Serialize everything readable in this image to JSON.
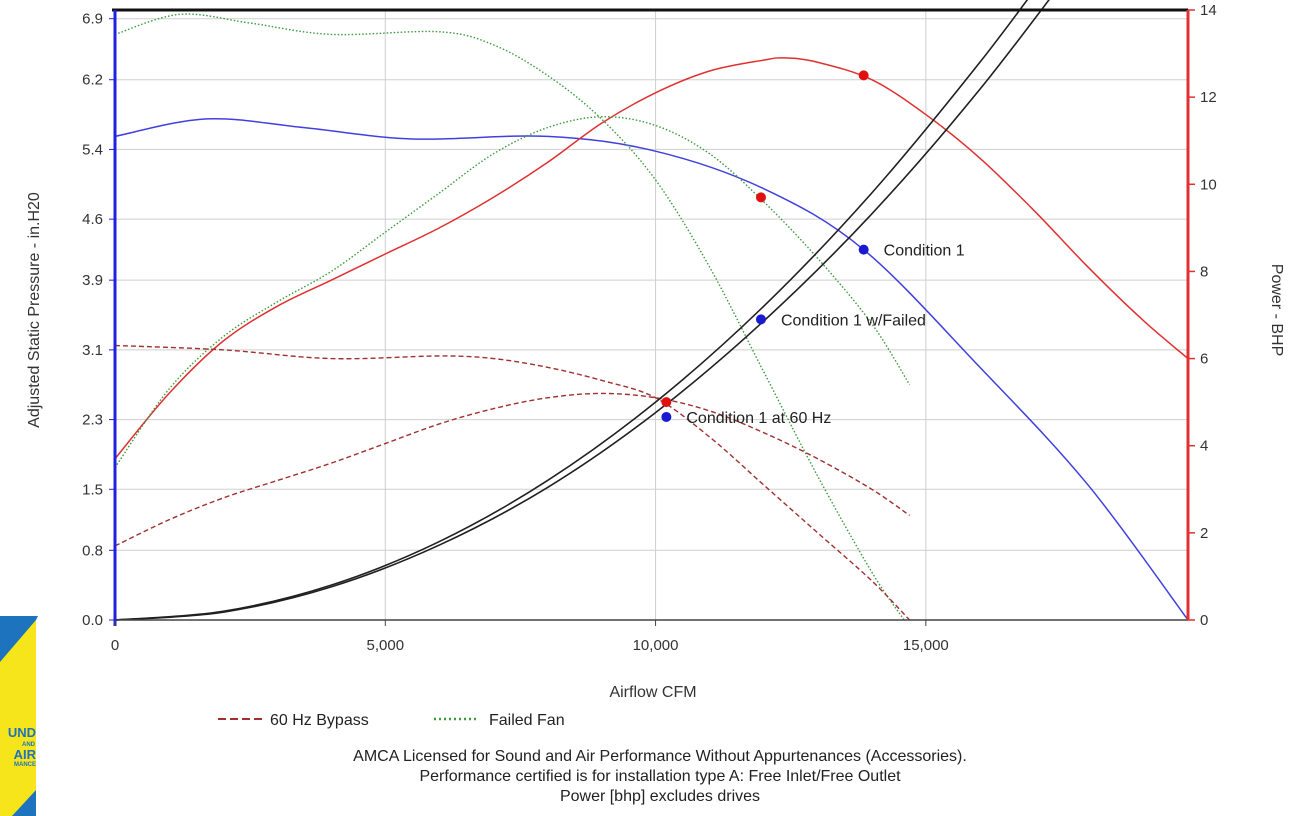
{
  "chart_data": {
    "type": "line",
    "xlabel": "Airflow CFM",
    "ylabel_left": "Adjusted Static Pressure - in.H20",
    "ylabel_right": "Power - BHP",
    "xlim": [
      0,
      19850
    ],
    "ylim_left": [
      0,
      7.0
    ],
    "ylim_right": [
      0,
      14
    ],
    "x_ticks": [
      0,
      5000,
      10000,
      15000
    ],
    "x_tick_labels": [
      "0",
      "5,000",
      "10,000",
      "15,000"
    ],
    "y_left_ticks": [
      0.0,
      0.8,
      1.5,
      2.3,
      3.1,
      3.9,
      4.6,
      5.4,
      6.2,
      6.9
    ],
    "y_left_tick_labels": [
      "0.0",
      "0.8",
      "1.5",
      "2.3",
      "3.1",
      "3.9",
      "4.6",
      "5.4",
      "6.2",
      "6.9"
    ],
    "y_right_ticks": [
      0,
      2,
      4,
      6,
      8,
      10,
      12,
      14
    ],
    "y_right_tick_labels": [
      "0",
      "2",
      "4",
      "6",
      "8",
      "10",
      "12",
      "14"
    ],
    "grid": true,
    "legend_position": "bottom",
    "legend": [
      {
        "label": "60 Hz Bypass",
        "color": "#a03030",
        "style": "dashed"
      },
      {
        "label": "Failed Fan",
        "color": "#3c9a3c",
        "style": "dotted"
      }
    ],
    "series": [
      {
        "axis": "left",
        "kind": "pressure",
        "color": "#4040e0",
        "style": "solid",
        "x": [
          0,
          1700,
          3500,
          5500,
          8000,
          10000,
          12000,
          13850,
          16000,
          18000,
          19850
        ],
        "y": [
          5.55,
          5.75,
          5.65,
          5.52,
          5.55,
          5.38,
          4.95,
          4.25,
          2.9,
          1.55,
          0
        ]
      },
      {
        "axis": "right",
        "kind": "power",
        "color": "#e03030",
        "style": "solid",
        "x": [
          0,
          1000,
          2000,
          3000,
          4000,
          5000,
          6000,
          7000,
          8000,
          9000,
          10000,
          11000,
          12000,
          12400,
          13000,
          14000,
          15000,
          16000,
          17000,
          18000,
          19000,
          19850
        ],
        "y": [
          3.7,
          5.2,
          6.4,
          7.2,
          7.8,
          8.4,
          9.0,
          9.7,
          10.5,
          11.4,
          12.1,
          12.6,
          12.85,
          12.9,
          12.8,
          12.4,
          11.6,
          10.6,
          9.4,
          8.1,
          6.9,
          6.0
        ]
      },
      {
        "axis": "left",
        "kind": "pressure",
        "color": "#3c9a3c",
        "style": "dotted",
        "x": [
          0,
          1200,
          2500,
          4000,
          6000,
          7000,
          8000,
          9000,
          10000,
          11000,
          12000,
          13000,
          14000,
          14600
        ],
        "y": [
          6.72,
          6.95,
          6.85,
          6.72,
          6.75,
          6.6,
          6.25,
          5.75,
          5.05,
          4.05,
          2.85,
          1.65,
          0.55,
          0
        ]
      },
      {
        "axis": "right",
        "kind": "power",
        "color": "#3c9a3c",
        "style": "dotted",
        "x": [
          0,
          1000,
          2000,
          3000,
          4000,
          5000,
          6000,
          7000,
          8000,
          9000,
          10000,
          11000,
          12000,
          13000,
          14000,
          14700
        ],
        "y": [
          3.5,
          5.3,
          6.5,
          7.3,
          8.0,
          8.9,
          9.8,
          10.7,
          11.3,
          11.55,
          11.35,
          10.7,
          9.6,
          8.3,
          6.8,
          5.4
        ]
      },
      {
        "axis": "left",
        "kind": "pressure",
        "color": "#a03030",
        "style": "dashed",
        "x": [
          0,
          2000,
          4000,
          6000,
          7000,
          8000,
          9000,
          10000,
          11000,
          12000,
          13000,
          14000,
          14700
        ],
        "y": [
          3.15,
          3.1,
          3.0,
          3.03,
          3.0,
          2.9,
          2.75,
          2.55,
          2.1,
          1.55,
          1.0,
          0.45,
          0
        ]
      },
      {
        "axis": "right",
        "kind": "power",
        "color": "#a03030",
        "style": "dashed",
        "x": [
          0,
          1000,
          2000,
          3000,
          4000,
          5000,
          6000,
          7000,
          8000,
          9000,
          10000,
          11000,
          12000,
          13000,
          14000,
          14700
        ],
        "y": [
          1.7,
          2.3,
          2.8,
          3.2,
          3.6,
          4.05,
          4.5,
          4.85,
          5.1,
          5.2,
          5.1,
          4.8,
          4.3,
          3.7,
          3.0,
          2.4
        ]
      },
      {
        "axis": "left",
        "kind": "system",
        "color": "#202020",
        "style": "solid",
        "x": [
          0,
          2000,
          4000,
          6000,
          8000,
          10000,
          12000,
          14000,
          16000,
          17950
        ],
        "y": [
          0,
          0.09,
          0.38,
          0.86,
          1.52,
          2.38,
          3.43,
          4.66,
          6.09,
          7.67
        ]
      },
      {
        "axis": "left",
        "kind": "system",
        "color": "#202020",
        "style": "solid",
        "x": [
          0,
          2000,
          4000,
          6000,
          8000,
          10000,
          12000,
          14000,
          16000,
          17450
        ],
        "y": [
          0,
          0.1,
          0.4,
          0.9,
          1.6,
          2.5,
          3.6,
          4.9,
          6.4,
          7.6
        ]
      }
    ],
    "operating_points": [
      {
        "label": "Condition 1",
        "x": 13850,
        "y": 4.25,
        "color": "#1a1ad0",
        "axis": "left"
      },
      {
        "label": "Condition 1 w/Failed",
        "x": 11950,
        "y": 3.45,
        "color": "#1a1ad0",
        "axis": "left"
      },
      {
        "label": "Condition 1 at 60 Hz",
        "x": 10200,
        "y": 2.33,
        "color": "#1a1ad0",
        "axis": "left"
      }
    ],
    "power_points": [
      {
        "x": 13850,
        "y": 12.5,
        "color": "#e01010",
        "axis": "right"
      },
      {
        "x": 11950,
        "y": 9.7,
        "color": "#e01010",
        "axis": "right"
      },
      {
        "x": 10200,
        "y": 5.0,
        "color": "#e01010",
        "axis": "right"
      }
    ]
  },
  "footer": {
    "line1": "AMCA Licensed for Sound and Air Performance Without Appurtenances (Accessories).",
    "line2": "Performance certified is for installation type A: Free Inlet/Free Outlet",
    "line3": "Power [bhp] excludes drives"
  },
  "logo": {
    "line1": "UND",
    "line2": "AND",
    "line3": "AIR",
    "line4": "MANCE",
    "bg_color": "#f6e51a",
    "accent_color": "#1e73be"
  }
}
